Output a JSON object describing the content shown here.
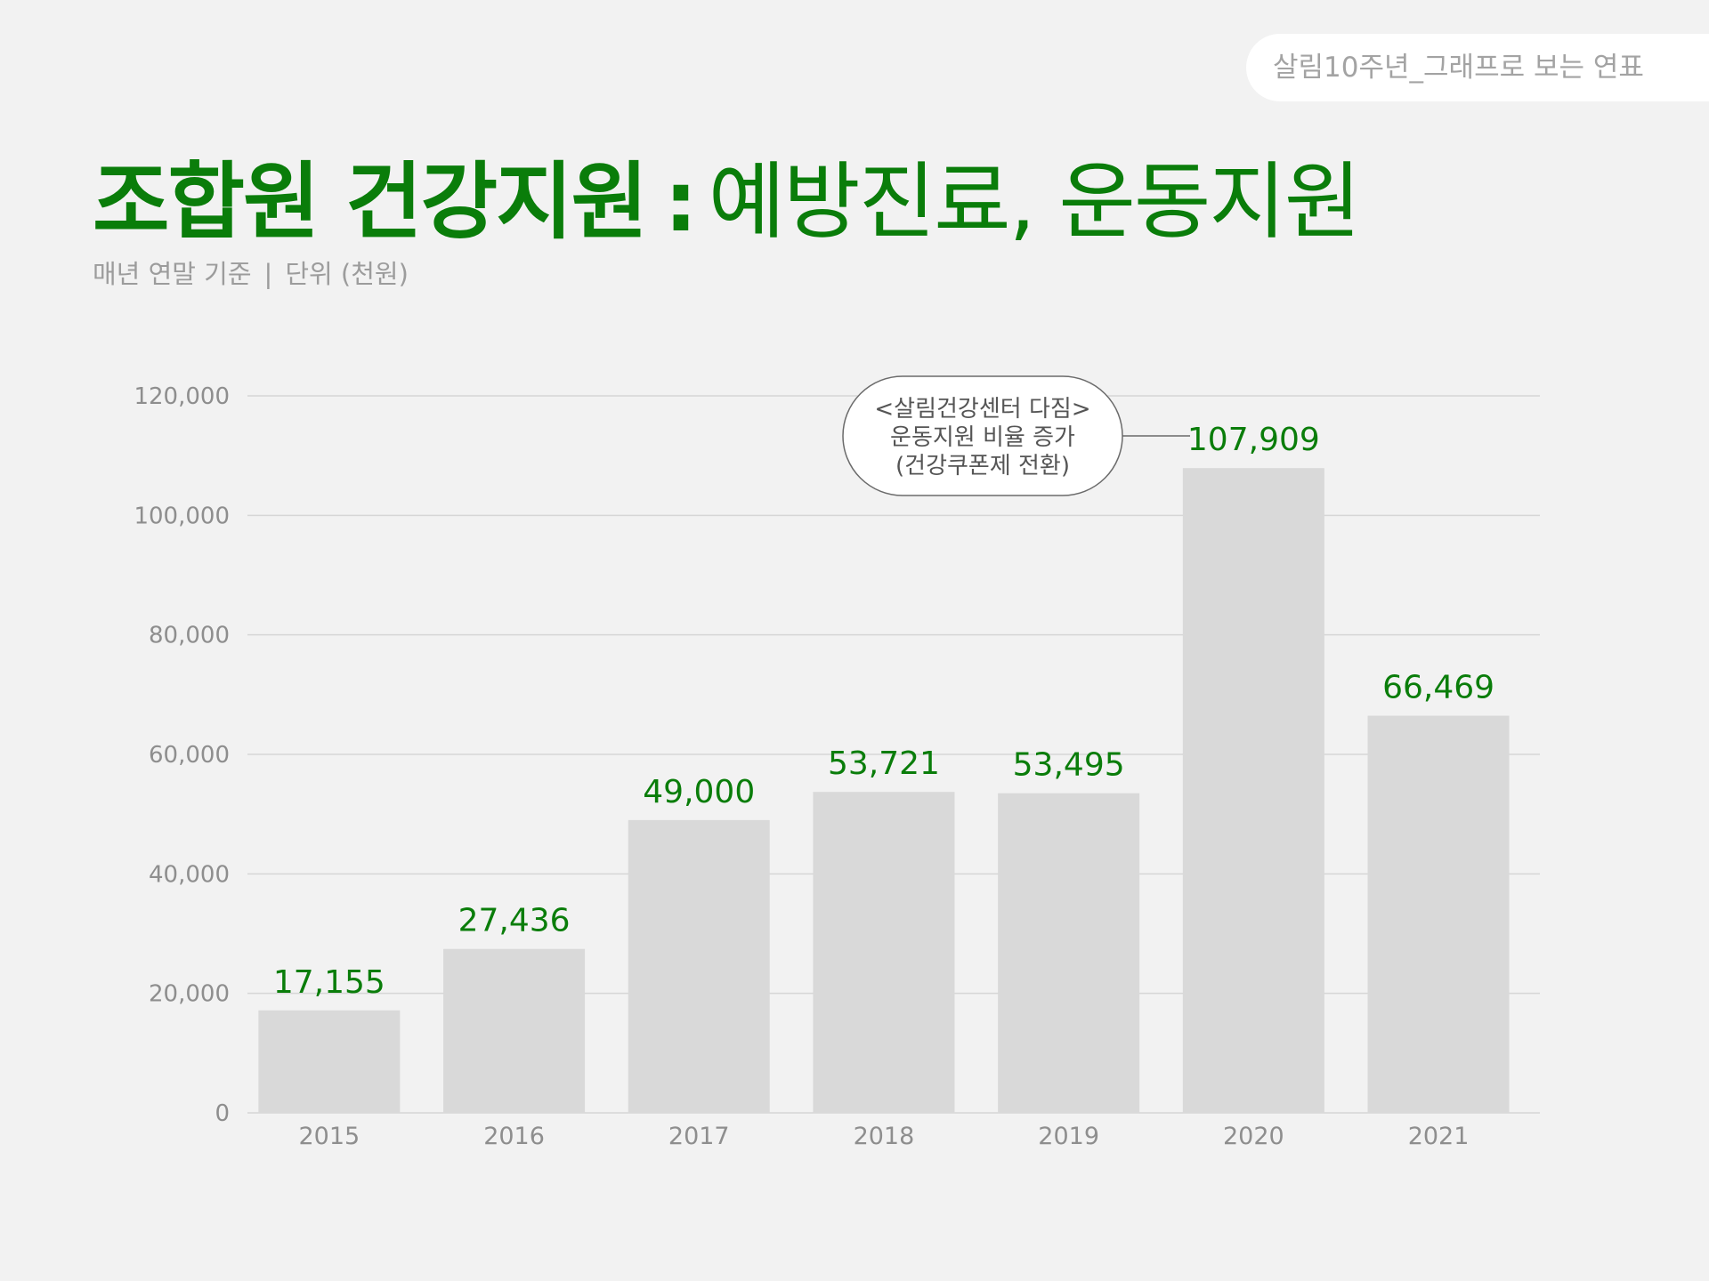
{
  "header": {
    "tag": "살림10주년_그래프로 보는 연표",
    "title_bold": "조합원 건강지원",
    "title_sep": ":",
    "title_light": "예방진료, 운동지원",
    "subtitle_basis": "매년 연말 기준",
    "subtitle_bar": "|",
    "subtitle_unit": "단위 (천원)"
  },
  "colors": {
    "accent": "#0a7d0a",
    "bar": "#d9d9d9",
    "grid": "#d6d6d6",
    "background": "#f2f2f2",
    "axis_text": "#8e8e8e"
  },
  "chart_data": {
    "type": "bar",
    "title": "",
    "xlabel": "",
    "ylabel": "",
    "categories": [
      "2015",
      "2016",
      "2017",
      "2018",
      "2019",
      "2020",
      "2021"
    ],
    "values": [
      17155,
      27436,
      49000,
      53721,
      53495,
      107909,
      66469
    ],
    "value_labels": [
      "17,155",
      "27,436",
      "49,000",
      "53,721",
      "53,495",
      "107,909",
      "66,469"
    ],
    "ylim": [
      0,
      120000
    ],
    "yticks": [
      0,
      20000,
      40000,
      60000,
      80000,
      100000,
      120000
    ],
    "ytick_labels": [
      "0",
      "20,000",
      "40,000",
      "60,000",
      "80,000",
      "100,000",
      "120,000"
    ],
    "grid": true,
    "legend": "none",
    "annotation": {
      "target_category": "2020",
      "lines": [
        "<살림건강센터 다짐>",
        "운동지원 비율 증가",
        "(건강쿠폰제 전환)"
      ]
    }
  }
}
